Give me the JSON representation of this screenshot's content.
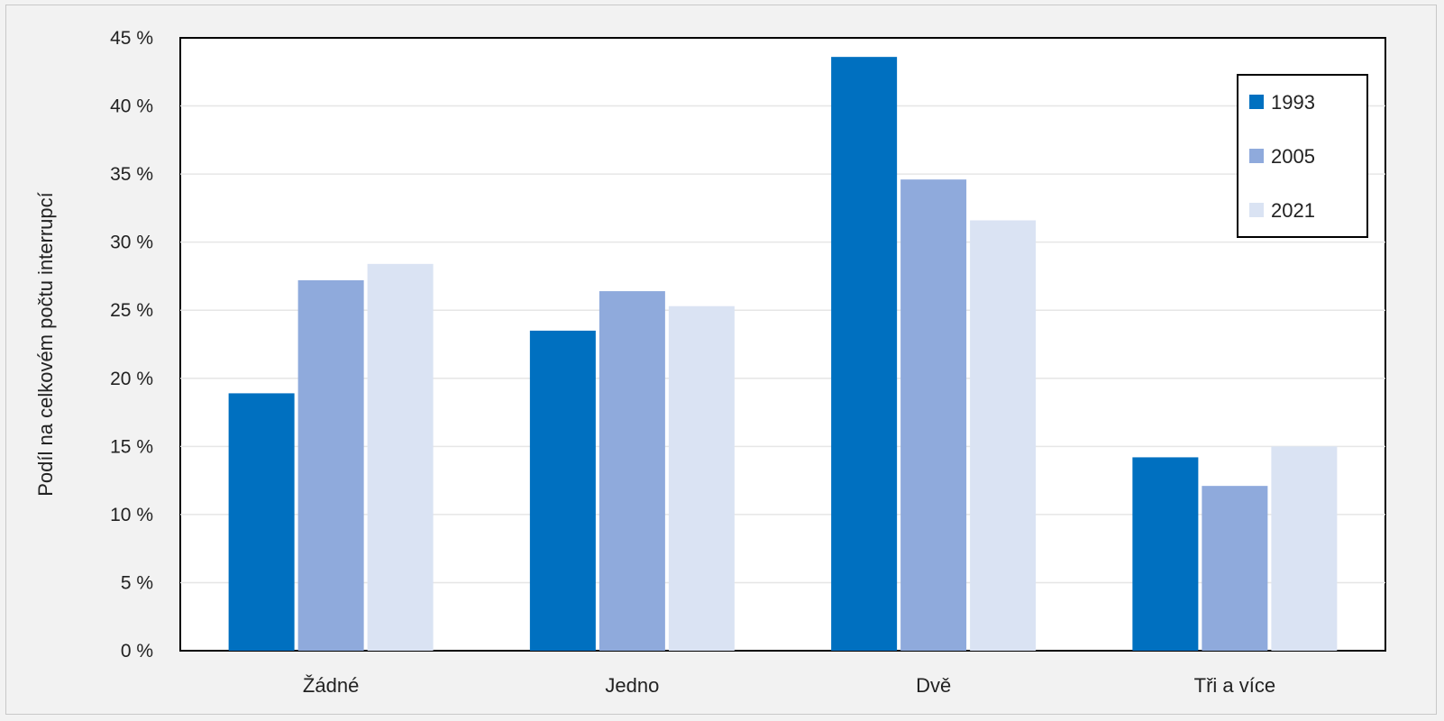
{
  "chart_data": {
    "type": "bar",
    "title": "",
    "xlabel": "",
    "ylabel": "Podíl na celkovém počtu interrupcí",
    "ylim": [
      0,
      45
    ],
    "yticks": [
      0,
      5,
      10,
      15,
      20,
      25,
      30,
      35,
      40,
      45
    ],
    "ytick_labels": [
      "0 %",
      "5 %",
      "10 %",
      "15 %",
      "20 %",
      "25 %",
      "30 %",
      "35 %",
      "40 %",
      "45 %"
    ],
    "grid": true,
    "legend_position": "top-right",
    "categories": [
      "Žádné",
      "Jedno",
      "Dvě",
      "Tři a více"
    ],
    "series": [
      {
        "name": "1993",
        "color": "#0070c0",
        "values": [
          18.9,
          23.5,
          43.6,
          14.2
        ]
      },
      {
        "name": "2005",
        "color": "#8faadc",
        "values": [
          27.2,
          26.4,
          34.6,
          12.1
        ]
      },
      {
        "name": "2021",
        "color": "#dae3f3",
        "values": [
          28.4,
          25.3,
          31.6,
          15.0
        ]
      }
    ]
  }
}
